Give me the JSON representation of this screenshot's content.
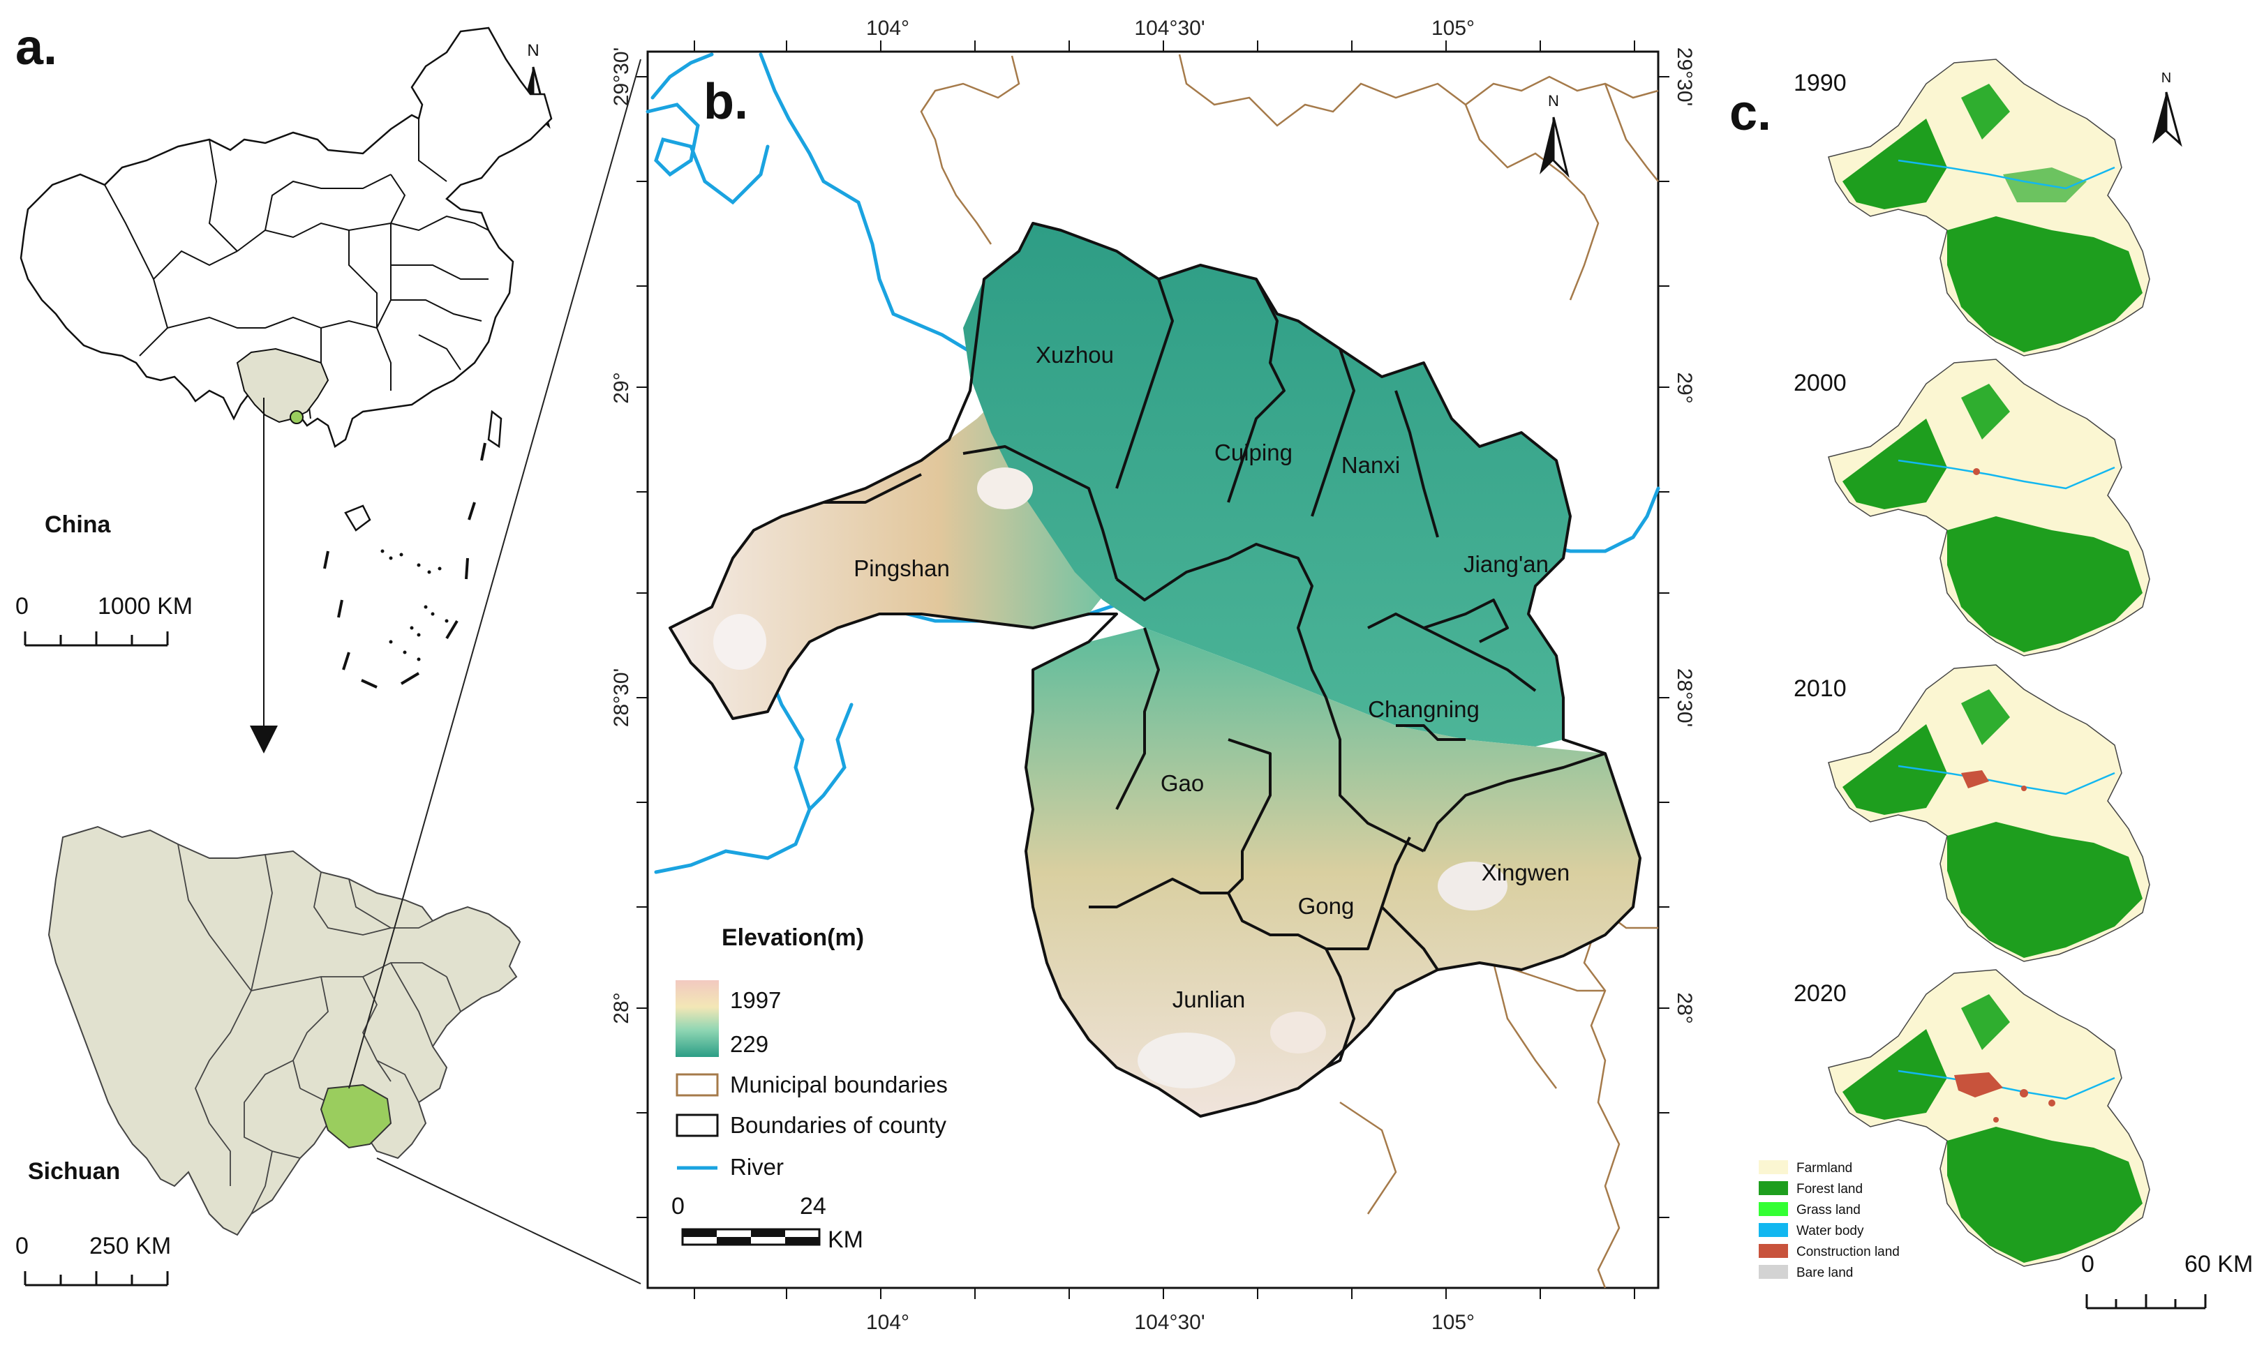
{
  "panels": {
    "a": {
      "letter": "a.",
      "china_label": "China",
      "sichuan_label": "Sichuan",
      "china_scale": {
        "zero": "0",
        "end": "1000 KM"
      },
      "sichuan_scale": {
        "zero": "0",
        "end": "250 KM"
      },
      "north": "N"
    },
    "b": {
      "letter": "b.",
      "north": "N",
      "top_ticks": [
        "104°",
        "104°30'",
        "105°"
      ],
      "bottom_ticks": [
        "104°",
        "104°30'",
        "105°"
      ],
      "left_ticks": [
        "29°30'",
        "29°",
        "28°30'",
        "28°"
      ],
      "right_ticks": [
        "29°30'",
        "29°",
        "28°30'",
        "28°"
      ],
      "counties": [
        "Xuzhou",
        "Cuiping",
        "Nanxi",
        "Jiang'an",
        "Pingshan",
        "Changning",
        "Gao",
        "Xingwen",
        "Gong",
        "Junlian"
      ],
      "legend": {
        "title": "Elevation(m)",
        "high": "1997",
        "low": "229",
        "municipal": "Municipal boundaries",
        "county": "Boundaries of county",
        "river": "River"
      },
      "scale": {
        "zero": "0",
        "mid": "24",
        "unit": "KM"
      }
    },
    "c": {
      "letter": "c.",
      "north": "N",
      "years": [
        "1990",
        "2000",
        "2010",
        "2020"
      ],
      "landuse_legend": [
        {
          "label": "Farmland",
          "color": "#fbf6d2"
        },
        {
          "label": "Forest land",
          "color": "#1e9e1e"
        },
        {
          "label": "Grass land",
          "color": "#33ff33"
        },
        {
          "label": "Water body",
          "color": "#12b7f0"
        },
        {
          "label": "Construction land",
          "color": "#c8533c"
        },
        {
          "label": "Bare land",
          "color": "#d3d3d3"
        }
      ],
      "scale": {
        "zero": "0",
        "end": "60 KM"
      }
    }
  },
  "colors": {
    "river": "#1aa3e0",
    "municipal": "#a57a4a",
    "county": "#000000",
    "sichuan_fill": "#e1e1cf",
    "study_fill": "#9acd5e"
  }
}
